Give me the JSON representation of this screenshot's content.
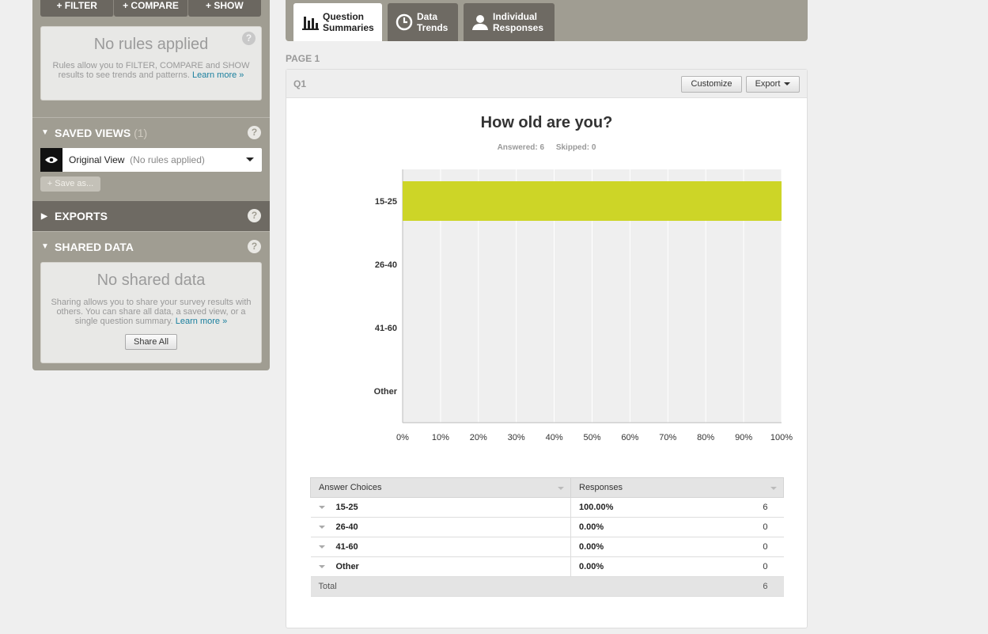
{
  "sidebar": {
    "rule_buttons": [
      "+ FILTER",
      "+ COMPARE",
      "+ SHOW"
    ],
    "no_rules": {
      "title": "No rules applied",
      "text": "Rules allow you to FILTER, COMPARE and SHOW results to see trends and patterns.",
      "link": "Learn more »"
    },
    "help_glyph": "?",
    "saved_views": {
      "title": "SAVED VIEWS",
      "count": "(1)",
      "view_name": "Original View",
      "view_sub": "(No rules applied)",
      "save_as": "+ Save as..."
    },
    "exports": {
      "title": "EXPORTS"
    },
    "shared_data": {
      "title": "SHARED DATA",
      "box_title": "No shared data",
      "text": "Sharing allows you to share your survey results with others. You can share all data, a saved view, or a single question summary.",
      "link": "Learn more »",
      "button": "Share All"
    }
  },
  "tabs": [
    {
      "line1": "Question",
      "line2": "Summaries",
      "icon": "bar-chart-icon",
      "active": true
    },
    {
      "line1": "Data",
      "line2": "Trends",
      "icon": "clock-icon",
      "active": false
    },
    {
      "line1": "Individual",
      "line2": "Responses",
      "icon": "person-icon",
      "active": false
    }
  ],
  "page_label": "PAGE 1",
  "question": {
    "label": "Q1",
    "customize": "Customize",
    "export": "Export",
    "title": "How old are you?",
    "answered": "Answered: 6",
    "skipped": "Skipped: 0"
  },
  "chart_data": {
    "type": "bar",
    "orientation": "horizontal",
    "categories": [
      "15-25",
      "26-40",
      "41-60",
      "Other"
    ],
    "values": [
      100,
      0,
      0,
      0
    ],
    "xlim": [
      0,
      100
    ],
    "x_ticks": [
      "0%",
      "10%",
      "20%",
      "30%",
      "40%",
      "50%",
      "60%",
      "70%",
      "80%",
      "90%",
      "100%"
    ],
    "bar_color": "#cdd527",
    "grid": true
  },
  "table": {
    "headers": [
      "Answer Choices",
      "Responses"
    ],
    "rows": [
      {
        "choice": "15-25",
        "percent": "100.00%",
        "count": "6"
      },
      {
        "choice": "26-40",
        "percent": "0.00%",
        "count": "0"
      },
      {
        "choice": "41-60",
        "percent": "0.00%",
        "count": "0"
      },
      {
        "choice": "Other",
        "percent": "0.00%",
        "count": "0"
      }
    ],
    "total_label": "Total",
    "total_count": "6"
  }
}
